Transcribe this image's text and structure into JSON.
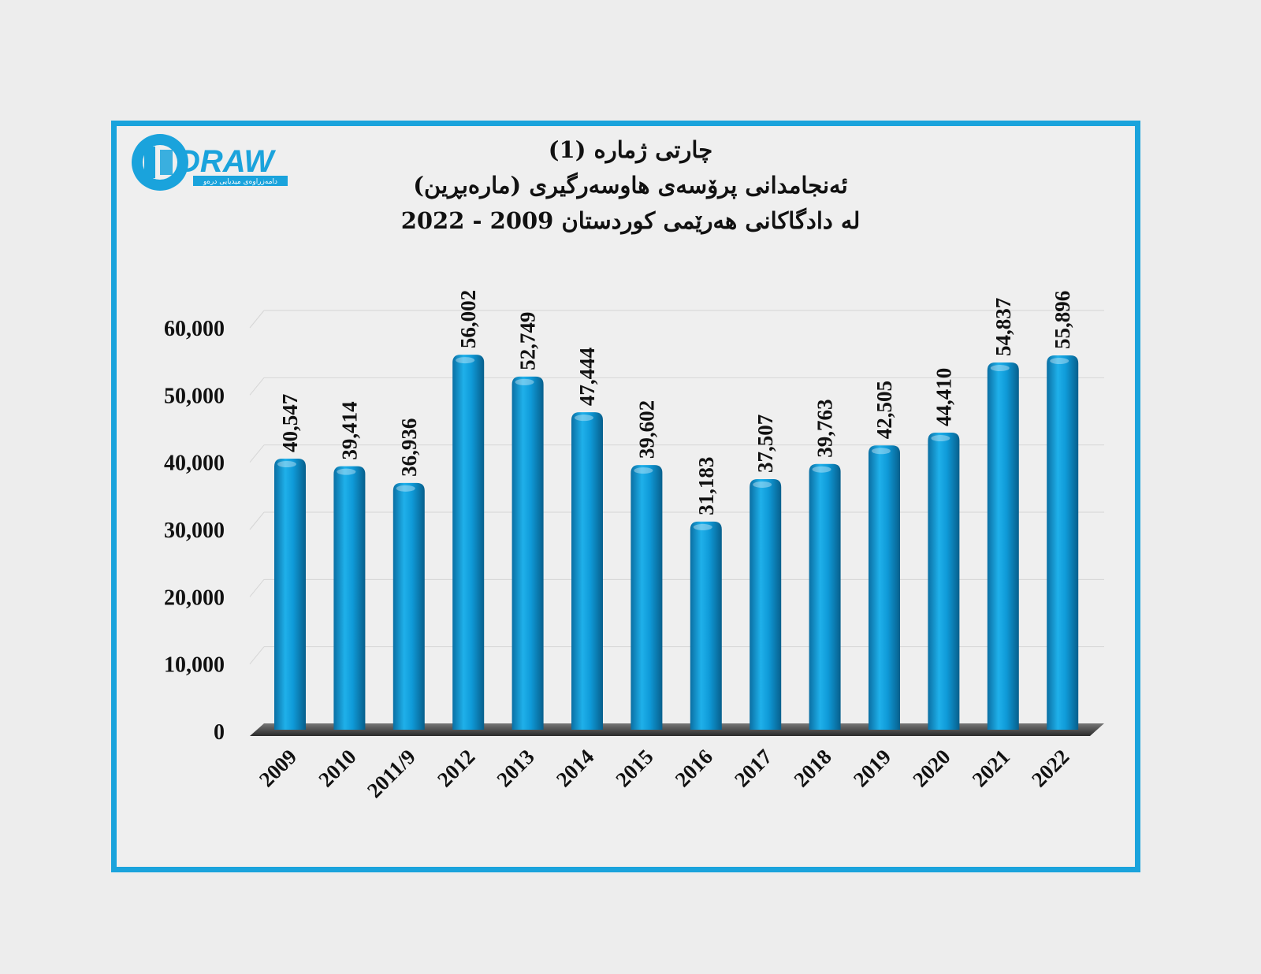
{
  "logo": {
    "text": "DRAW",
    "tagline": "دامەزراوەی میدیایی درەو",
    "color": "#1aa3dc"
  },
  "title": {
    "line1": "چارتی ژمارە (1)",
    "line2": "ئەنجامدانی پرۆسەی هاوسەرگیری (مارەبڕین)",
    "line3": "لە دادگاکانی هەرێمی کوردستان 2009 - 2022"
  },
  "colors": {
    "frame": "#1aa3dc",
    "bar": "#0f9ad8",
    "background": "#efefef"
  },
  "chart_data": {
    "type": "bar",
    "categories": [
      "2009",
      "2010",
      "2011/9",
      "2012",
      "2013",
      "2014",
      "2015",
      "2016",
      "2017",
      "2018",
      "2019",
      "2020",
      "2021",
      "2022"
    ],
    "values": [
      40547,
      39414,
      36936,
      56002,
      52749,
      47444,
      39602,
      31183,
      37507,
      39763,
      42505,
      44410,
      54837,
      55896
    ],
    "value_labels": [
      "40,547",
      "39,414",
      "36,936",
      "56,002",
      "52,749",
      "47,444",
      "39,602",
      "31,183",
      "37,507",
      "39,763",
      "42,505",
      "44,410",
      "54,837",
      "55,896"
    ],
    "yticks": [
      0,
      10000,
      20000,
      30000,
      40000,
      50000,
      60000
    ],
    "ytick_labels": [
      "0",
      "10,000",
      "20,000",
      "30,000",
      "40,000",
      "50,000",
      "60,000"
    ],
    "ylim": [
      0,
      60000
    ],
    "grid": true,
    "style": "3d-cylinder"
  }
}
